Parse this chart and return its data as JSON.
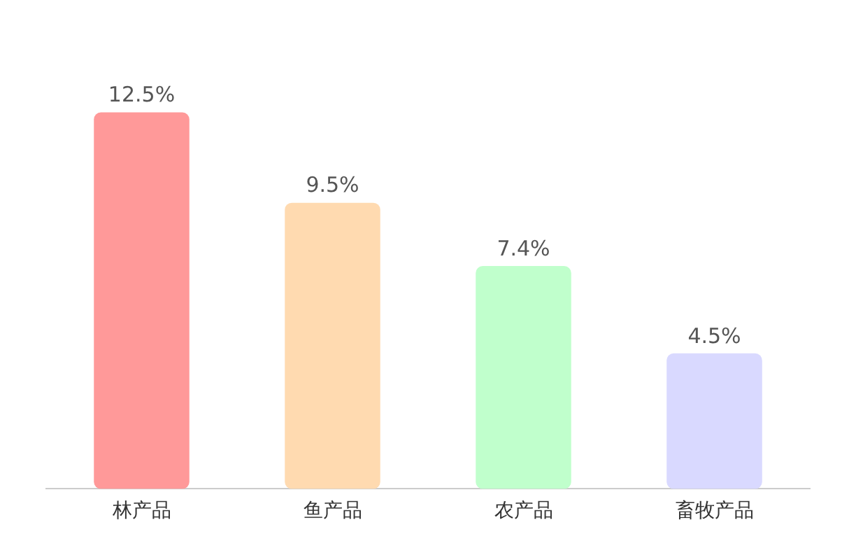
{
  "chart_data": {
    "type": "bar",
    "categories": [
      "林产品",
      "鱼产品",
      "农产品",
      "畜牧产品"
    ],
    "values": [
      12.5,
      9.5,
      7.4,
      4.5
    ],
    "colors": [
      "#ff9999",
      "#ffdab0",
      "#c0ffcc",
      "#d9d9ff"
    ],
    "value_labels": [
      "12.5%",
      "9.5%",
      "7.4%",
      "4.5%"
    ],
    "grid": false,
    "legend": false
  }
}
